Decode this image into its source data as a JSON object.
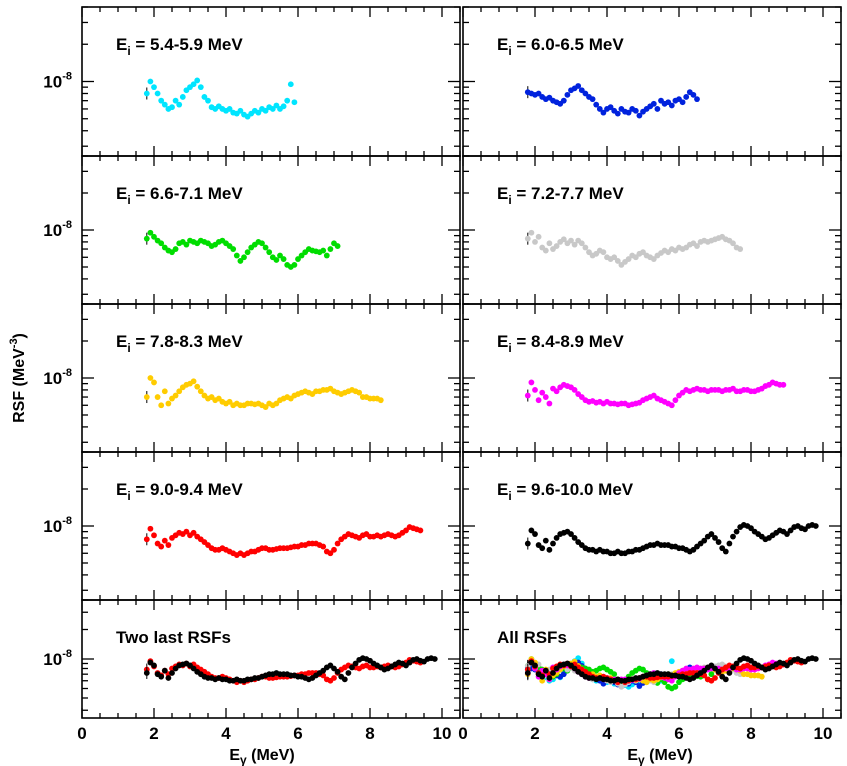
{
  "figure": {
    "ylabel_main": "RSF (MeV",
    "ylabel_exp": "-3",
    "ylabel_close": ")",
    "xlabel_main": "E",
    "xlabel_sub": "γ",
    "xlabel_rest": " (MeV)",
    "ytick_base": "10",
    "ytick_exp": "-8"
  },
  "chart_data": {
    "type": "scatter",
    "x_axis": {
      "range": [
        0,
        10.5
      ],
      "ticks": [
        0,
        2,
        4,
        6,
        8,
        10
      ]
    },
    "y_axis": {
      "scale": "log",
      "range": [
        2.5e-09,
        4e-08
      ],
      "tick": "10^-8"
    },
    "panels": [
      {
        "id": "ei-5.4-5.9",
        "label_main": "E",
        "label_sub": "i",
        "label_rest": " = 5.4-5.9 MeV",
        "color": "#00e5ff",
        "x": [
          1.8,
          1.9,
          2.0,
          2.1,
          2.2,
          2.3,
          2.4,
          2.5,
          2.6,
          2.7,
          2.8,
          2.9,
          3.0,
          3.1,
          3.2,
          3.3,
          3.4,
          3.5,
          3.6,
          3.7,
          3.8,
          3.9,
          4.0,
          4.1,
          4.2,
          4.3,
          4.4,
          4.5,
          4.6,
          4.7,
          4.8,
          4.9,
          5.0,
          5.1,
          5.2,
          5.3,
          5.4,
          5.5,
          5.6,
          5.7,
          5.8,
          5.9
        ],
        "y": [
          0.8,
          1.0,
          0.9,
          0.8,
          0.7,
          0.65,
          0.6,
          0.62,
          0.7,
          0.65,
          0.75,
          0.85,
          0.9,
          0.95,
          1.02,
          0.9,
          0.75,
          0.7,
          0.62,
          0.6,
          0.63,
          0.6,
          0.58,
          0.6,
          0.56,
          0.55,
          0.58,
          0.54,
          0.52,
          0.55,
          0.58,
          0.56,
          0.6,
          0.58,
          0.62,
          0.6,
          0.64,
          0.6,
          0.63,
          0.7,
          0.95,
          0.68
        ]
      },
      {
        "id": "ei-6.0-6.5",
        "label_main": "E",
        "label_sub": "i",
        "label_rest": " = 6.0-6.5 MeV",
        "color": "#0022dd",
        "x": [
          1.8,
          1.9,
          2.0,
          2.1,
          2.2,
          2.3,
          2.4,
          2.5,
          2.6,
          2.7,
          2.8,
          2.9,
          3.0,
          3.1,
          3.2,
          3.3,
          3.4,
          3.5,
          3.6,
          3.7,
          3.8,
          3.9,
          4.0,
          4.1,
          4.2,
          4.3,
          4.4,
          4.5,
          4.6,
          4.7,
          4.8,
          4.9,
          5.0,
          5.1,
          5.2,
          5.3,
          5.4,
          5.5,
          5.6,
          5.7,
          5.8,
          5.9,
          6.0,
          6.1,
          6.2,
          6.3,
          6.4,
          6.5
        ],
        "y": [
          0.82,
          0.8,
          0.78,
          0.8,
          0.75,
          0.72,
          0.74,
          0.7,
          0.68,
          0.66,
          0.7,
          0.78,
          0.85,
          0.88,
          0.92,
          0.85,
          0.8,
          0.75,
          0.72,
          0.65,
          0.6,
          0.56,
          0.6,
          0.62,
          0.58,
          0.55,
          0.6,
          0.57,
          0.56,
          0.6,
          0.58,
          0.53,
          0.57,
          0.6,
          0.63,
          0.66,
          0.6,
          0.7,
          0.66,
          0.68,
          0.64,
          0.7,
          0.72,
          0.68,
          0.75,
          0.82,
          0.78,
          0.72
        ]
      },
      {
        "id": "ei-6.6-7.1",
        "label_main": "E",
        "label_sub": "i",
        "label_rest": " = 6.6-7.1 MeV",
        "color": "#00dd00",
        "x": [
          1.8,
          1.9,
          2.0,
          2.1,
          2.2,
          2.3,
          2.4,
          2.5,
          2.6,
          2.7,
          2.8,
          2.9,
          3.0,
          3.1,
          3.2,
          3.3,
          3.4,
          3.5,
          3.6,
          3.7,
          3.8,
          3.9,
          4.0,
          4.1,
          4.2,
          4.3,
          4.4,
          4.5,
          4.6,
          4.7,
          4.8,
          4.9,
          5.0,
          5.1,
          5.2,
          5.3,
          5.4,
          5.5,
          5.6,
          5.7,
          5.8,
          5.9,
          6.0,
          6.1,
          6.2,
          6.3,
          6.4,
          6.5,
          6.6,
          6.7,
          6.8,
          6.9,
          7.0,
          7.1
        ],
        "y": [
          0.85,
          0.95,
          0.88,
          0.82,
          0.78,
          0.72,
          0.68,
          0.66,
          0.7,
          0.78,
          0.8,
          0.76,
          0.82,
          0.8,
          0.78,
          0.82,
          0.8,
          0.78,
          0.74,
          0.76,
          0.8,
          0.82,
          0.78,
          0.74,
          0.7,
          0.62,
          0.56,
          0.6,
          0.66,
          0.72,
          0.76,
          0.8,
          0.78,
          0.72,
          0.66,
          0.6,
          0.57,
          0.62,
          0.58,
          0.52,
          0.5,
          0.52,
          0.58,
          0.62,
          0.66,
          0.7,
          0.68,
          0.67,
          0.66,
          0.68,
          0.62,
          0.7,
          0.78,
          0.74
        ]
      },
      {
        "id": "ei-7.2-7.7",
        "label_main": "E",
        "label_sub": "i",
        "label_rest": " = 7.2-7.7 MeV",
        "color": "#c8c8c8",
        "x": [
          1.8,
          1.9,
          2.0,
          2.1,
          2.2,
          2.3,
          2.4,
          2.5,
          2.6,
          2.7,
          2.8,
          2.9,
          3.0,
          3.1,
          3.2,
          3.3,
          3.4,
          3.5,
          3.6,
          3.7,
          3.8,
          3.9,
          4.0,
          4.1,
          4.2,
          4.3,
          4.4,
          4.5,
          4.6,
          4.7,
          4.8,
          4.9,
          5.0,
          5.1,
          5.2,
          5.3,
          5.4,
          5.5,
          5.6,
          5.7,
          5.8,
          5.9,
          6.0,
          6.1,
          6.2,
          6.3,
          6.4,
          6.5,
          6.6,
          6.7,
          6.8,
          6.9,
          7.0,
          7.1,
          7.2,
          7.3,
          7.4,
          7.5,
          7.6,
          7.7
        ],
        "y": [
          0.85,
          0.95,
          0.8,
          0.88,
          0.72,
          0.68,
          0.78,
          0.7,
          0.74,
          0.8,
          0.84,
          0.78,
          0.82,
          0.76,
          0.82,
          0.78,
          0.72,
          0.66,
          0.62,
          0.64,
          0.68,
          0.66,
          0.6,
          0.58,
          0.6,
          0.56,
          0.52,
          0.55,
          0.58,
          0.62,
          0.6,
          0.64,
          0.66,
          0.62,
          0.6,
          0.58,
          0.62,
          0.65,
          0.68,
          0.66,
          0.7,
          0.68,
          0.72,
          0.7,
          0.72,
          0.76,
          0.78,
          0.74,
          0.8,
          0.82,
          0.8,
          0.82,
          0.84,
          0.86,
          0.88,
          0.84,
          0.82,
          0.78,
          0.72,
          0.7
        ]
      },
      {
        "id": "ei-7.8-8.3",
        "label_main": "E",
        "label_sub": "i",
        "label_rest": " = 7.8-8.3 MeV",
        "color": "#ffcc00",
        "x": [
          1.8,
          1.9,
          2.0,
          2.1,
          2.2,
          2.3,
          2.4,
          2.5,
          2.6,
          2.7,
          2.8,
          2.9,
          3.0,
          3.1,
          3.2,
          3.3,
          3.4,
          3.5,
          3.6,
          3.7,
          3.8,
          3.9,
          4.0,
          4.1,
          4.2,
          4.3,
          4.4,
          4.5,
          4.6,
          4.7,
          4.8,
          4.9,
          5.0,
          5.1,
          5.2,
          5.3,
          5.4,
          5.5,
          5.6,
          5.7,
          5.8,
          5.9,
          6.0,
          6.1,
          6.2,
          6.3,
          6.4,
          6.5,
          6.6,
          6.7,
          6.8,
          6.9,
          7.0,
          7.1,
          7.2,
          7.3,
          7.4,
          7.5,
          7.6,
          7.7,
          7.8,
          7.9,
          8.0,
          8.1,
          8.2,
          8.3
        ],
        "y": [
          0.7,
          1.0,
          0.92,
          0.7,
          0.6,
          0.78,
          0.62,
          0.68,
          0.72,
          0.78,
          0.84,
          0.88,
          0.9,
          0.94,
          0.85,
          0.78,
          0.72,
          0.68,
          0.7,
          0.66,
          0.68,
          0.64,
          0.62,
          0.64,
          0.6,
          0.62,
          0.6,
          0.6,
          0.62,
          0.62,
          0.61,
          0.62,
          0.6,
          0.58,
          0.62,
          0.6,
          0.62,
          0.66,
          0.68,
          0.7,
          0.68,
          0.72,
          0.74,
          0.76,
          0.78,
          0.76,
          0.74,
          0.78,
          0.78,
          0.8,
          0.8,
          0.82,
          0.78,
          0.76,
          0.74,
          0.76,
          0.78,
          0.8,
          0.78,
          0.76,
          0.7,
          0.7,
          0.68,
          0.68,
          0.68,
          0.66
        ]
      },
      {
        "id": "ei-8.4-8.9",
        "label_main": "E",
        "label_sub": "i",
        "label_rest": " = 8.4-8.9 MeV",
        "color": "#ff00ff",
        "x": [
          1.8,
          1.9,
          2.0,
          2.1,
          2.2,
          2.3,
          2.4,
          2.5,
          2.6,
          2.7,
          2.8,
          2.9,
          3.0,
          3.1,
          3.2,
          3.3,
          3.4,
          3.5,
          3.6,
          3.7,
          3.8,
          3.9,
          4.0,
          4.1,
          4.2,
          4.3,
          4.4,
          4.5,
          4.6,
          4.7,
          4.8,
          4.9,
          5.0,
          5.1,
          5.2,
          5.3,
          5.4,
          5.5,
          5.6,
          5.7,
          5.8,
          5.9,
          6.0,
          6.1,
          6.2,
          6.3,
          6.4,
          6.5,
          6.6,
          6.7,
          6.8,
          6.9,
          7.0,
          7.1,
          7.2,
          7.3,
          7.4,
          7.5,
          7.6,
          7.7,
          7.8,
          7.9,
          8.0,
          8.1,
          8.2,
          8.3,
          8.4,
          8.5,
          8.6,
          8.7,
          8.8,
          8.9
        ],
        "y": [
          0.72,
          0.92,
          0.8,
          0.66,
          0.76,
          0.7,
          0.62,
          0.82,
          0.78,
          0.84,
          0.88,
          0.86,
          0.84,
          0.8,
          0.74,
          0.7,
          0.66,
          0.64,
          0.65,
          0.63,
          0.64,
          0.62,
          0.64,
          0.62,
          0.62,
          0.61,
          0.62,
          0.62,
          0.6,
          0.61,
          0.62,
          0.63,
          0.66,
          0.68,
          0.7,
          0.72,
          0.68,
          0.66,
          0.64,
          0.62,
          0.6,
          0.66,
          0.72,
          0.76,
          0.8,
          0.78,
          0.8,
          0.82,
          0.8,
          0.8,
          0.78,
          0.8,
          0.8,
          0.8,
          0.78,
          0.8,
          0.8,
          0.82,
          0.78,
          0.78,
          0.8,
          0.8,
          0.78,
          0.78,
          0.8,
          0.82,
          0.86,
          0.88,
          0.92,
          0.9,
          0.88,
          0.88
        ]
      },
      {
        "id": "ei-9.0-9.4",
        "label_main": "E",
        "label_sub": "i",
        "label_rest": " = 9.0-9.4 MeV",
        "color": "#ff0000",
        "x": [
          1.8,
          1.9,
          2.0,
          2.1,
          2.2,
          2.3,
          2.4,
          2.5,
          2.6,
          2.7,
          2.8,
          2.9,
          3.0,
          3.1,
          3.2,
          3.3,
          3.4,
          3.5,
          3.6,
          3.7,
          3.8,
          3.9,
          4.0,
          4.1,
          4.2,
          4.3,
          4.4,
          4.5,
          4.6,
          4.7,
          4.8,
          4.9,
          5.0,
          5.1,
          5.2,
          5.3,
          5.4,
          5.5,
          5.6,
          5.7,
          5.8,
          5.9,
          6.0,
          6.1,
          6.2,
          6.3,
          6.4,
          6.5,
          6.6,
          6.7,
          6.8,
          6.9,
          7.0,
          7.1,
          7.2,
          7.3,
          7.4,
          7.5,
          7.6,
          7.7,
          7.8,
          7.9,
          8.0,
          8.1,
          8.2,
          8.3,
          8.4,
          8.5,
          8.6,
          8.7,
          8.8,
          8.9,
          9.0,
          9.1,
          9.2,
          9.3,
          9.4
        ],
        "y": [
          0.78,
          0.95,
          0.84,
          0.72,
          0.68,
          0.76,
          0.7,
          0.8,
          0.84,
          0.88,
          0.86,
          0.9,
          0.84,
          0.88,
          0.82,
          0.78,
          0.74,
          0.7,
          0.66,
          0.64,
          0.64,
          0.66,
          0.64,
          0.62,
          0.6,
          0.58,
          0.6,
          0.58,
          0.6,
          0.62,
          0.62,
          0.64,
          0.66,
          0.66,
          0.64,
          0.64,
          0.65,
          0.66,
          0.66,
          0.66,
          0.67,
          0.68,
          0.68,
          0.7,
          0.7,
          0.72,
          0.72,
          0.72,
          0.7,
          0.68,
          0.62,
          0.6,
          0.64,
          0.72,
          0.78,
          0.82,
          0.86,
          0.84,
          0.82,
          0.8,
          0.84,
          0.86,
          0.82,
          0.82,
          0.84,
          0.82,
          0.84,
          0.86,
          0.84,
          0.82,
          0.84,
          0.88,
          0.92,
          0.98,
          0.96,
          0.94,
          0.92
        ]
      },
      {
        "id": "ei-9.6-10.0",
        "label_main": "E",
        "label_sub": "i",
        "label_rest": " = 9.6-10.0 MeV",
        "color": "#000000",
        "x": [
          1.8,
          1.9,
          2.0,
          2.1,
          2.2,
          2.3,
          2.4,
          2.5,
          2.6,
          2.7,
          2.8,
          2.9,
          3.0,
          3.1,
          3.2,
          3.3,
          3.4,
          3.5,
          3.6,
          3.7,
          3.8,
          3.9,
          4.0,
          4.1,
          4.2,
          4.3,
          4.4,
          4.5,
          4.6,
          4.7,
          4.8,
          4.9,
          5.0,
          5.1,
          5.2,
          5.3,
          5.4,
          5.5,
          5.6,
          5.7,
          5.8,
          5.9,
          6.0,
          6.1,
          6.2,
          6.3,
          6.4,
          6.5,
          6.6,
          6.7,
          6.8,
          6.9,
          7.0,
          7.1,
          7.2,
          7.3,
          7.4,
          7.5,
          7.6,
          7.7,
          7.8,
          7.9,
          8.0,
          8.1,
          8.2,
          8.3,
          8.4,
          8.5,
          8.6,
          8.7,
          8.8,
          8.9,
          9.0,
          9.1,
          9.2,
          9.3,
          9.4,
          9.5,
          9.6,
          9.7,
          9.8
        ],
        "y": [
          0.72,
          0.92,
          0.86,
          0.7,
          0.66,
          0.76,
          0.64,
          0.72,
          0.8,
          0.86,
          0.88,
          0.9,
          0.86,
          0.8,
          0.74,
          0.7,
          0.66,
          0.64,
          0.64,
          0.62,
          0.64,
          0.62,
          0.62,
          0.6,
          0.6,
          0.62,
          0.6,
          0.6,
          0.62,
          0.62,
          0.64,
          0.64,
          0.66,
          0.68,
          0.7,
          0.7,
          0.72,
          0.7,
          0.7,
          0.7,
          0.68,
          0.68,
          0.66,
          0.66,
          0.64,
          0.62,
          0.64,
          0.68,
          0.72,
          0.76,
          0.82,
          0.86,
          0.8,
          0.74,
          0.66,
          0.62,
          0.72,
          0.82,
          0.9,
          0.98,
          1.02,
          1.0,
          0.96,
          0.9,
          0.86,
          0.82,
          0.78,
          0.8,
          0.84,
          0.88,
          0.92,
          0.9,
          0.86,
          0.92,
          0.98,
          1.0,
          0.96,
          0.94,
          1.0,
          1.02,
          1.0
        ]
      },
      {
        "id": "two-last",
        "label_main": "Two last RSFs",
        "label_sub": "",
        "label_rest": "",
        "color": "#000000",
        "composite": [
          "ei-9.0-9.4",
          "ei-9.6-10.0"
        ]
      },
      {
        "id": "all",
        "label_main": "All RSFs",
        "label_sub": "",
        "label_rest": "",
        "color": "#000000",
        "composite": [
          "ei-5.4-5.9",
          "ei-6.0-6.5",
          "ei-6.6-7.1",
          "ei-7.2-7.7",
          "ei-7.8-8.3",
          "ei-8.4-8.9",
          "ei-9.0-9.4",
          "ei-9.6-10.0"
        ]
      }
    ]
  }
}
